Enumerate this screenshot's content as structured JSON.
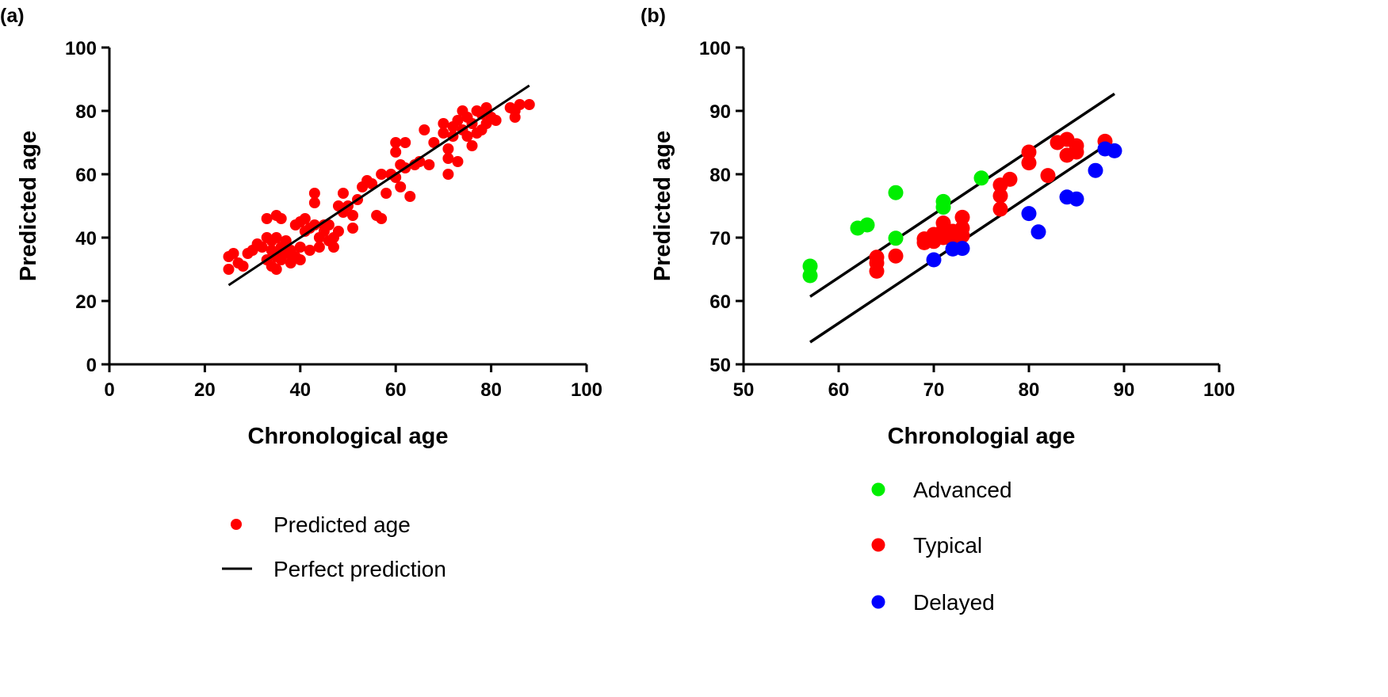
{
  "chart_data": [
    {
      "panel_label": "(a)",
      "type": "scatter",
      "xlabel": "Chronological age",
      "ylabel": "Predicted age",
      "xlim": [
        0,
        100
      ],
      "ylim": [
        0,
        100
      ],
      "xticks": [
        "0",
        "20",
        "40",
        "60",
        "80",
        "100"
      ],
      "yticks": [
        "0",
        "20",
        "40",
        "60",
        "80",
        "100"
      ],
      "legend_placement": "bottom",
      "series": [
        {
          "name": "Predicted age",
          "color": "#ff0000",
          "kind": "points",
          "points": [
            [
              25,
              34
            ],
            [
              25,
              30
            ],
            [
              26,
              35
            ],
            [
              27,
              32
            ],
            [
              28,
              31
            ],
            [
              29,
              35
            ],
            [
              30,
              36
            ],
            [
              31,
              38
            ],
            [
              32,
              37
            ],
            [
              33,
              46
            ],
            [
              33,
              40
            ],
            [
              33,
              33
            ],
            [
              34,
              36
            ],
            [
              34,
              31
            ],
            [
              35,
              47
            ],
            [
              35,
              40
            ],
            [
              35,
              34
            ],
            [
              35,
              30
            ],
            [
              36,
              46
            ],
            [
              36,
              37
            ],
            [
              36,
              33
            ],
            [
              37,
              39
            ],
            [
              37,
              35
            ],
            [
              38,
              32
            ],
            [
              38,
              36
            ],
            [
              39,
              44
            ],
            [
              39,
              34
            ],
            [
              40,
              45
            ],
            [
              40,
              37
            ],
            [
              40,
              33
            ],
            [
              41,
              46
            ],
            [
              41,
              42
            ],
            [
              42,
              43
            ],
            [
              43,
              54
            ],
            [
              43,
              51
            ],
            [
              43,
              44
            ],
            [
              44,
              40
            ],
            [
              44,
              37
            ],
            [
              45,
              42
            ],
            [
              46,
              44
            ],
            [
              46,
              39
            ],
            [
              47,
              40
            ],
            [
              47,
              37
            ],
            [
              48,
              42
            ],
            [
              48,
              50
            ],
            [
              49,
              54
            ],
            [
              49,
              48
            ],
            [
              50,
              50
            ],
            [
              51,
              43
            ],
            [
              51,
              47
            ],
            [
              52,
              52
            ],
            [
              53,
              56
            ],
            [
              54,
              58
            ],
            [
              55,
              57
            ],
            [
              56,
              47
            ],
            [
              57,
              46
            ],
            [
              57,
              60
            ],
            [
              58,
              54
            ],
            [
              59,
              60
            ],
            [
              60,
              70
            ],
            [
              60,
              67
            ],
            [
              60,
              59
            ],
            [
              61,
              56
            ],
            [
              61,
              63
            ],
            [
              62,
              70
            ],
            [
              62,
              62
            ],
            [
              63,
              53
            ],
            [
              64,
              63
            ],
            [
              65,
              64
            ],
            [
              66,
              74
            ],
            [
              67,
              63
            ],
            [
              68,
              70
            ],
            [
              70,
              76
            ],
            [
              70,
              73
            ],
            [
              71,
              68
            ],
            [
              71,
              60
            ],
            [
              71,
              65
            ],
            [
              72,
              72
            ],
            [
              72,
              75
            ],
            [
              73,
              64
            ],
            [
              73,
              77
            ],
            [
              74,
              80
            ],
            [
              74,
              74
            ],
            [
              75,
              78
            ],
            [
              75,
              72
            ],
            [
              76,
              69
            ],
            [
              76,
              76
            ],
            [
              77,
              80
            ],
            [
              77,
              73
            ],
            [
              78,
              74
            ],
            [
              78,
              79
            ],
            [
              79,
              81
            ],
            [
              79,
              76
            ],
            [
              80,
              78
            ],
            [
              81,
              77
            ],
            [
              84,
              81
            ],
            [
              85,
              78
            ],
            [
              85,
              80
            ],
            [
              86,
              82
            ],
            [
              88,
              82
            ],
            [
              45,
              44
            ],
            [
              38,
              35
            ],
            [
              42,
              36
            ],
            [
              36,
              35
            ],
            [
              34,
              39
            ]
          ]
        },
        {
          "name": "Perfect prediction",
          "color": "#000000",
          "kind": "line",
          "points": [
            [
              25,
              25
            ],
            [
              88,
              88
            ]
          ]
        }
      ]
    },
    {
      "panel_label": "(b)",
      "type": "scatter",
      "xlabel": "Chronologial age",
      "ylabel": "Predicted age",
      "xlim": [
        50,
        100
      ],
      "ylim": [
        50,
        100
      ],
      "xticks": [
        "50",
        "60",
        "70",
        "80",
        "90",
        "100"
      ],
      "yticks": [
        "50",
        "60",
        "70",
        "80",
        "90",
        "100"
      ],
      "legend_placement": "bottom",
      "lines": [
        {
          "color": "#000000",
          "points": [
            [
              57,
              60.7
            ],
            [
              89,
              92.7
            ]
          ]
        },
        {
          "color": "#000000",
          "points": [
            [
              57,
              53.5
            ],
            [
              88.5,
              85
            ]
          ]
        }
      ],
      "series": [
        {
          "name": "Advanced",
          "color": "#00ee00",
          "points": [
            [
              57,
              65.5
            ],
            [
              57,
              64
            ],
            [
              62,
              71.5
            ],
            [
              63,
              72
            ],
            [
              66,
              77.1
            ],
            [
              66,
              69.9
            ],
            [
              71,
              75.7
            ],
            [
              71,
              74.8
            ],
            [
              75,
              79.4
            ]
          ]
        },
        {
          "name": "Typical",
          "color": "#ff0000",
          "points": [
            [
              64,
              66.9
            ],
            [
              64,
              66
            ],
            [
              64,
              64.7
            ],
            [
              66,
              67.1
            ],
            [
              69,
              69.8
            ],
            [
              69,
              69.2
            ],
            [
              70,
              70.5
            ],
            [
              70,
              69.4
            ],
            [
              71,
              72.3
            ],
            [
              71,
              71.2
            ],
            [
              71,
              70
            ],
            [
              72,
              71
            ],
            [
              72,
              69.5
            ],
            [
              73,
              73.2
            ],
            [
              73,
              71.5
            ],
            [
              73,
              70.3
            ],
            [
              77,
              78.3
            ],
            [
              77,
              76.6
            ],
            [
              77,
              74.5
            ],
            [
              78,
              79.2
            ],
            [
              80,
              83.5
            ],
            [
              80,
              81.8
            ],
            [
              82,
              79.8
            ],
            [
              83,
              85
            ],
            [
              84,
              85.5
            ],
            [
              84,
              83
            ],
            [
              85,
              84.5
            ],
            [
              85,
              83.5
            ],
            [
              88,
              85.2
            ]
          ]
        },
        {
          "name": "Delayed",
          "color": "#0000ff",
          "points": [
            [
              70,
              66.5
            ],
            [
              72,
              68.2
            ],
            [
              73,
              68.3
            ],
            [
              80,
              73.8
            ],
            [
              81,
              70.9
            ],
            [
              84,
              76.4
            ],
            [
              85,
              76.1
            ],
            [
              87,
              80.6
            ],
            [
              88,
              84
            ],
            [
              89,
              83.7
            ]
          ]
        }
      ]
    }
  ]
}
